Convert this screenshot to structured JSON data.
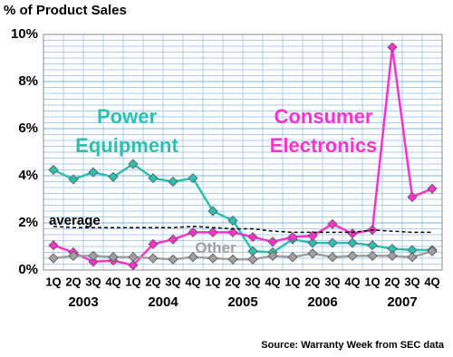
{
  "chart_data": {
    "type": "line",
    "title": "% of Product Sales",
    "source": "Source: Warranty Week from SEC data",
    "categories": [
      "1Q",
      "2Q",
      "3Q",
      "4Q",
      "1Q",
      "2Q",
      "3Q",
      "4Q",
      "1Q",
      "2Q",
      "3Q",
      "4Q",
      "1Q",
      "2Q",
      "3Q",
      "4Q",
      "1Q",
      "2Q",
      "3Q",
      "4Q"
    ],
    "years": [
      "2003",
      "2004",
      "2005",
      "2006",
      "2007"
    ],
    "ylim": [
      0,
      10
    ],
    "yticks": [
      {
        "value": 0,
        "label": "0%"
      },
      {
        "value": 2,
        "label": "2%"
      },
      {
        "value": 4,
        "label": "4%"
      },
      {
        "value": 6,
        "label": "6%"
      },
      {
        "value": 8,
        "label": "8%"
      },
      {
        "value": 10,
        "label": "10%"
      }
    ],
    "grid": true,
    "series": [
      {
        "name": "Power Equipment",
        "color": "#2fbfb0",
        "marker": true,
        "values": [
          4.25,
          3.85,
          4.15,
          3.95,
          4.5,
          3.9,
          3.75,
          3.9,
          2.5,
          2.1,
          0.8,
          0.75,
          1.3,
          1.15,
          1.15,
          1.15,
          1.05,
          0.9,
          0.85,
          0.85
        ]
      },
      {
        "name": "Consumer Electronics",
        "color": "#ff33cc",
        "marker": true,
        "values": [
          1.05,
          0.75,
          0.35,
          0.4,
          0.2,
          1.1,
          1.3,
          1.6,
          1.6,
          1.6,
          1.4,
          1.2,
          1.4,
          1.45,
          1.95,
          1.55,
          1.7,
          9.45,
          3.1,
          3.45
        ]
      },
      {
        "name": "Other",
        "color": "#a0a0a0",
        "marker": true,
        "values": [
          0.5,
          0.6,
          0.6,
          0.55,
          0.55,
          0.5,
          0.45,
          0.55,
          0.5,
          0.45,
          0.45,
          0.6,
          0.55,
          0.7,
          0.55,
          0.6,
          0.6,
          0.6,
          0.55,
          0.8
        ]
      },
      {
        "name": "average",
        "color": "#000000",
        "marker": false,
        "dashed": true,
        "values": [
          1.85,
          1.8,
          1.8,
          1.8,
          1.8,
          1.8,
          1.8,
          1.85,
          1.8,
          1.75,
          1.75,
          1.65,
          1.6,
          1.6,
          1.6,
          1.6,
          1.7,
          1.65,
          1.6,
          1.6
        ]
      }
    ]
  }
}
